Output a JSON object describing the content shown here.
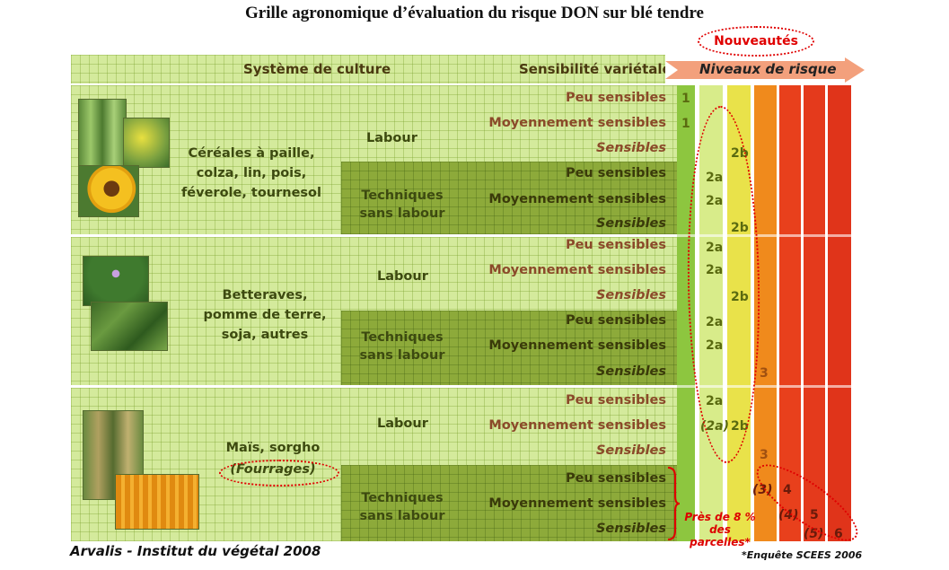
{
  "title": "Grille agronomique d’évaluation du risque DON sur blé tendre",
  "nouveautes": "Nouveautés",
  "header": {
    "systeme": "Système de culture",
    "sensibilite": "Sensibilité variétale",
    "niveaux": "Niveaux de risque"
  },
  "groups": [
    {
      "crop_lines": [
        "Céréales à paille,",
        "colza, lin, pois,",
        "féverole, tournesol"
      ],
      "labour": "Labour",
      "tsl": [
        "Techniques",
        "sans labour"
      ]
    },
    {
      "crop_lines": [
        "Betteraves,",
        "pomme de terre,",
        "soja, autres"
      ],
      "labour": "Labour",
      "tsl": [
        "Techniques",
        "sans labour"
      ]
    },
    {
      "crop_lines": [
        "Maïs, sorgho"
      ],
      "crop_extra": "(Fourrages)",
      "labour": "Labour",
      "tsl": [
        "Techniques",
        "sans labour"
      ]
    }
  ],
  "sensitivity": [
    "Peu sensibles",
    "Moyennement sensibles",
    "Sensibles"
  ],
  "risk_values": [
    "1",
    "1",
    "2b",
    "2a",
    "2a",
    "2b",
    "2a",
    "2a",
    "2b",
    "2a",
    "2a",
    "3",
    "2a",
    "(2a)",
    "2b",
    "3",
    "(3)",
    "4",
    "(4)",
    "5",
    "(5)",
    "6"
  ],
  "note": [
    "Près de 8 %",
    "des parcelles*"
  ],
  "footer_left": "Arvalis - Institut du végétal 2008",
  "footer_right": "*Enquête SCEES 2006",
  "colors": {
    "level1": "#8dc63f",
    "level2a": "#d8ec8a",
    "level2b": "#e9e24a",
    "level3": "#f08a1c",
    "level4": "#e8401c",
    "level5": "#e43a1c",
    "level6": "#e0341a",
    "arrow": "#f3a07c",
    "dashed": "#e00000"
  }
}
